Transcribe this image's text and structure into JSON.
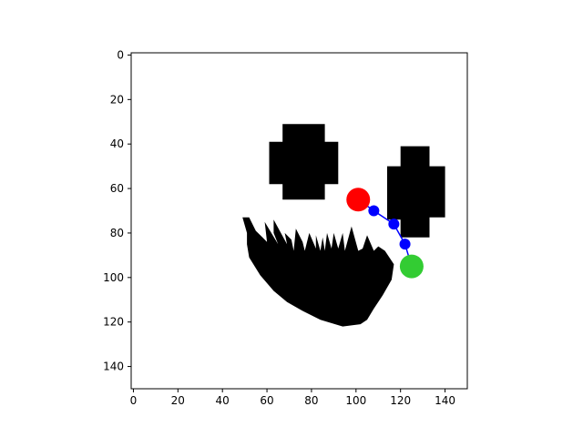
{
  "chart_data": {
    "type": "scatter",
    "title": "",
    "xlabel": "",
    "ylabel": "",
    "xlim": [
      -1,
      150
    ],
    "ylim": [
      150,
      -1
    ],
    "y_inverted": true,
    "grid": false,
    "xticks": [
      0,
      20,
      40,
      60,
      80,
      100,
      120,
      140
    ],
    "yticks": [
      0,
      20,
      40,
      60,
      80,
      100,
      120,
      140
    ],
    "image": {
      "description": "binary occupancy map (black obstacles on white)",
      "obstacles": [
        {
          "name": "obstacle-left-cross",
          "polygon": [
            [
              67,
              31
            ],
            [
              86,
              31
            ],
            [
              86,
              39
            ],
            [
              92,
              39
            ],
            [
              92,
              58
            ],
            [
              86,
              58
            ],
            [
              86,
              65
            ],
            [
              67,
              65
            ],
            [
              67,
              58
            ],
            [
              61,
              58
            ],
            [
              61,
              39
            ],
            [
              67,
              39
            ]
          ]
        },
        {
          "name": "obstacle-right-cross",
          "polygon": [
            [
              120,
              41
            ],
            [
              133,
              41
            ],
            [
              133,
              50
            ],
            [
              140,
              50
            ],
            [
              140,
              73
            ],
            [
              133,
              73
            ],
            [
              133,
              82
            ],
            [
              120,
              82
            ],
            [
              120,
              74
            ],
            [
              114,
              74
            ],
            [
              114,
              50
            ],
            [
              120,
              50
            ]
          ]
        },
        {
          "name": "obstacle-mouth",
          "polygon": [
            [
              49,
              73
            ],
            [
              52,
              73
            ],
            [
              55,
              79
            ],
            [
              58,
              82
            ],
            [
              60,
              84
            ],
            [
              59,
              75
            ],
            [
              65,
              85
            ],
            [
              63,
              80
            ],
            [
              63,
              74
            ],
            [
              69,
              85
            ],
            [
              68,
              80
            ],
            [
              71,
              83
            ],
            [
              72,
              88
            ],
            [
              73,
              78
            ],
            [
              76,
              84
            ],
            [
              77,
              88
            ],
            [
              79,
              80
            ],
            [
              82,
              87
            ],
            [
              82,
              81
            ],
            [
              84,
              88
            ],
            [
              85,
              82
            ],
            [
              86,
              88
            ],
            [
              87,
              80
            ],
            [
              89,
              87
            ],
            [
              90,
              80
            ],
            [
              92,
              87
            ],
            [
              94,
              80
            ],
            [
              95,
              88
            ],
            [
              98,
              77
            ],
            [
              101,
              88
            ],
            [
              103,
              87
            ],
            [
              105,
              81
            ],
            [
              108,
              88
            ],
            [
              110,
              86
            ],
            [
              113,
              88
            ],
            [
              117,
              94
            ],
            [
              116,
              101
            ],
            [
              112,
              108
            ],
            [
              108,
              114
            ],
            [
              105,
              119
            ],
            [
              102,
              121
            ],
            [
              94,
              122
            ],
            [
              84,
              119
            ],
            [
              76,
              115
            ],
            [
              69,
              111
            ],
            [
              63,
              106
            ],
            [
              57,
              99
            ],
            [
              52,
              91
            ],
            [
              51,
              85
            ],
            [
              51,
              80
            ]
          ]
        }
      ]
    },
    "series": [
      {
        "role": "path",
        "color": "#0000ff",
        "marker": "circle",
        "points": [
          [
            101,
            65
          ],
          [
            108,
            70
          ],
          [
            117,
            76
          ],
          [
            122,
            85
          ],
          [
            125,
            95
          ]
        ]
      },
      {
        "role": "start",
        "color": "#ff0000",
        "marker": "circle",
        "points": [
          [
            101,
            65
          ]
        ]
      },
      {
        "role": "goal",
        "color": "#33cc33",
        "marker": "circle",
        "points": [
          [
            125,
            95
          ]
        ]
      }
    ]
  }
}
